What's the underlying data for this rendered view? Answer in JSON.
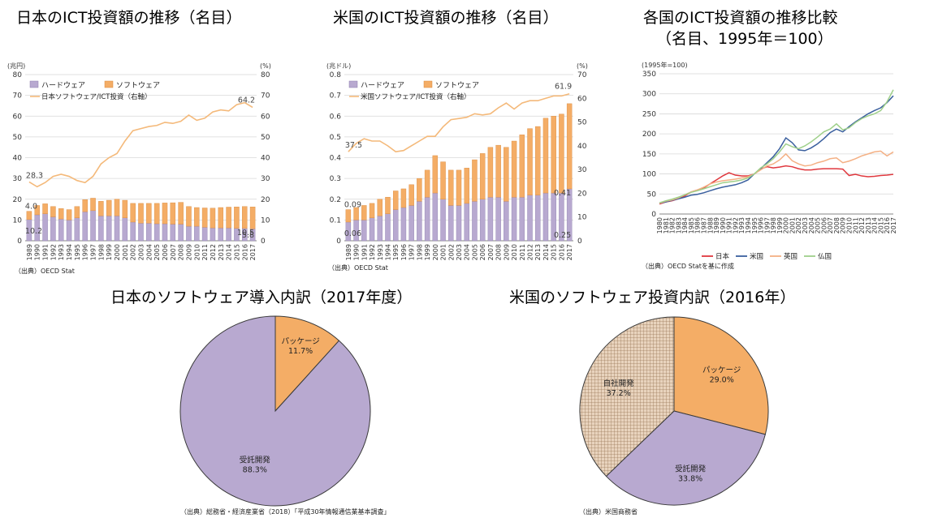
{
  "titles": {
    "c1": "日本のICT投資額の推移（名目）",
    "c2": "米国のICT投資額の推移（名目）",
    "c3a": "各国のICT投資額の推移比較",
    "c3b": "（名目、1995年＝100）",
    "p1": "日本のソフトウェア導入内訳（2017年度）",
    "p2": "米国のソフトウェア投資内訳（2016年）"
  },
  "sources": {
    "c1": "（出典）OECD Stat",
    "c2": "（出典）OECD Stat",
    "c3": "（出典）OECD Statを基に作成",
    "p1": "（出典）総務省・経済産業省（2018）「平成30年情報通信業基本調査」",
    "p2": "（出典）米国商務省"
  },
  "colors": {
    "hardware": "#b8a9d0",
    "software": "#f4ad66",
    "share_line": "#f4b97a",
    "japan": "#e0383e",
    "us": "#3a5f9e",
    "uk": "#f4b084",
    "france": "#9fd08a"
  },
  "chart_data": [
    {
      "type": "bar",
      "subtype": "stacked-bar-with-line",
      "left_unit": "(兆円)",
      "right_unit": "(%)",
      "categories": [
        "1989",
        "1990",
        "1991",
        "1992",
        "1993",
        "1994",
        "1995",
        "1996",
        "1997",
        "1998",
        "1999",
        "2000",
        "2001",
        "2002",
        "2003",
        "2004",
        "2005",
        "2006",
        "2007",
        "2008",
        "2009",
        "2010",
        "2011",
        "2012",
        "2013",
        "2014",
        "2015",
        "2016",
        "2017"
      ],
      "series": [
        {
          "name": "ハードウェア",
          "values": [
            10.2,
            12.5,
            13.0,
            11.5,
            10.5,
            10.0,
            11.0,
            14.0,
            14.5,
            12.0,
            12.0,
            12.0,
            11.0,
            9.0,
            8.5,
            8.5,
            8.2,
            8.2,
            8.0,
            8.0,
            7.0,
            7.0,
            6.5,
            6.2,
            6.2,
            6.2,
            6.0,
            6.0,
            5.8
          ]
        },
        {
          "name": "ソフトウェア",
          "values": [
            4.0,
            4.5,
            4.8,
            5.0,
            5.0,
            5.0,
            5.5,
            5.8,
            6.0,
            7.0,
            7.5,
            8.0,
            8.5,
            9.0,
            9.5,
            9.5,
            9.8,
            10.0,
            10.3,
            10.5,
            9.5,
            9.0,
            9.3,
            9.5,
            9.8,
            10.0,
            10.3,
            10.5,
            10.5
          ]
        },
        {
          "name": "日本ソフトウェア/ICT投資（右軸）",
          "axis": "right",
          "values": [
            28.3,
            26,
            28,
            31,
            32,
            31,
            29,
            28,
            31,
            37,
            40,
            42,
            48,
            53,
            54,
            55,
            55.5,
            57,
            56.5,
            57.5,
            60.5,
            58,
            59,
            62,
            63,
            62.5,
            65.5,
            66.5,
            64.2
          ]
        }
      ],
      "data_labels": [
        "10.2",
        "4.0",
        "28.3",
        "64.2",
        "10.5",
        "5.8"
      ],
      "yticks_left": [
        "0",
        "10",
        "20",
        "30",
        "40",
        "50",
        "60",
        "70",
        "80"
      ],
      "yticks_right": [
        "0",
        "10",
        "20",
        "30",
        "40",
        "50",
        "60",
        "70",
        "80"
      ],
      "ylim": [
        0,
        80
      ],
      "ylim_right": [
        0,
        80
      ],
      "grid": true,
      "legend_position": "top-left"
    },
    {
      "type": "bar",
      "subtype": "stacked-bar-with-line",
      "left_unit": "(兆ドル)",
      "right_unit": "(%)",
      "categories": [
        "1989",
        "1990",
        "1991",
        "1992",
        "1993",
        "1994",
        "1995",
        "1996",
        "1997",
        "1998",
        "1999",
        "2000",
        "2001",
        "2002",
        "2003",
        "2004",
        "2005",
        "2006",
        "2007",
        "2008",
        "2009",
        "2010",
        "2011",
        "2012",
        "2013",
        "2014",
        "2015",
        "2016",
        "2017"
      ],
      "series": [
        {
          "name": "ハードウェア",
          "values": [
            0.09,
            0.1,
            0.1,
            0.11,
            0.12,
            0.13,
            0.15,
            0.16,
            0.17,
            0.19,
            0.21,
            0.23,
            0.2,
            0.17,
            0.17,
            0.18,
            0.19,
            0.2,
            0.21,
            0.21,
            0.19,
            0.21,
            0.21,
            0.22,
            0.22,
            0.23,
            0.23,
            0.23,
            0.25
          ]
        },
        {
          "name": "ソフトウェア",
          "values": [
            0.06,
            0.06,
            0.07,
            0.07,
            0.08,
            0.08,
            0.09,
            0.09,
            0.1,
            0.11,
            0.13,
            0.18,
            0.18,
            0.17,
            0.17,
            0.17,
            0.2,
            0.22,
            0.24,
            0.25,
            0.26,
            0.27,
            0.3,
            0.32,
            0.33,
            0.36,
            0.37,
            0.38,
            0.41
          ]
        },
        {
          "name": "米国ソフトウェア/ICT投資（右軸）",
          "axis": "right",
          "values": [
            37.5,
            41,
            43,
            42,
            42,
            40,
            37.5,
            38,
            40,
            42,
            44,
            44,
            48,
            51,
            51.5,
            52,
            53.5,
            53,
            53.5,
            56,
            58,
            55.5,
            58,
            59,
            59,
            60,
            61,
            61,
            61.9
          ]
        }
      ],
      "data_labels": [
        "0.06",
        "0.09",
        "37.5",
        "61.9",
        "0.41",
        "0.25"
      ],
      "yticks_left": [
        "0",
        "0.1",
        "0.2",
        "0.3",
        "0.4",
        "0.5",
        "0.6",
        "0.7",
        "0.8"
      ],
      "yticks_right": [
        "0",
        "10",
        "20",
        "30",
        "40",
        "50",
        "60",
        "70"
      ],
      "ylim": [
        0,
        0.8
      ],
      "ylim_right": [
        0,
        70
      ],
      "grid": true,
      "legend_position": "top-left"
    },
    {
      "type": "line",
      "unit_label": "(1995年=100)",
      "categories": [
        "1980",
        "1981",
        "1982",
        "1983",
        "1984",
        "1985",
        "1986",
        "1987",
        "1988",
        "1989",
        "1990",
        "1991",
        "1992",
        "1993",
        "1994",
        "1995",
        "1996",
        "1997",
        "1998",
        "1999",
        "2000",
        "2001",
        "2002",
        "2003",
        "2004",
        "2005",
        "2006",
        "2007",
        "2008",
        "2009",
        "2010",
        "2011",
        "2012",
        "2013",
        "2014",
        "2015",
        "2016",
        "2017"
      ],
      "series": [
        {
          "name": "日本",
          "values": [
            25,
            30,
            33,
            38,
            45,
            55,
            60,
            65,
            75,
            85,
            95,
            103,
            97,
            95,
            95,
            100,
            112,
            118,
            115,
            117,
            120,
            118,
            113,
            110,
            110,
            112,
            113,
            113,
            113,
            112,
            96,
            99,
            95,
            93,
            94,
            96,
            97,
            99
          ]
        },
        {
          "name": "米国",
          "values": [
            27,
            30,
            34,
            38,
            42,
            47,
            49,
            53,
            58,
            63,
            67,
            70,
            73,
            78,
            85,
            100,
            113,
            128,
            143,
            163,
            190,
            178,
            160,
            158,
            165,
            175,
            188,
            203,
            212,
            205,
            218,
            230,
            240,
            250,
            258,
            265,
            278,
            295
          ]
        },
        {
          "name": "英国",
          "values": [
            27,
            32,
            35,
            40,
            48,
            55,
            60,
            67,
            75,
            80,
            83,
            85,
            87,
            90,
            93,
            100,
            110,
            120,
            125,
            135,
            150,
            133,
            125,
            120,
            122,
            128,
            132,
            138,
            140,
            128,
            132,
            138,
            145,
            150,
            155,
            157,
            145,
            155
          ]
        },
        {
          "name": "仏国",
          "values": [
            28,
            33,
            37,
            42,
            48,
            54,
            58,
            63,
            68,
            73,
            78,
            80,
            82,
            85,
            90,
            100,
            115,
            125,
            138,
            155,
            175,
            168,
            163,
            170,
            180,
            192,
            205,
            212,
            225,
            210,
            215,
            228,
            238,
            245,
            250,
            258,
            280,
            310
          ]
        }
      ],
      "yticks": [
        "0",
        "50",
        "100",
        "150",
        "200",
        "250",
        "300",
        "350"
      ],
      "ylim": [
        0,
        350
      ],
      "grid": true,
      "legend_position": "bottom"
    },
    {
      "type": "pie",
      "slices": [
        {
          "label": "パッケージ",
          "value": 11.7,
          "text": "11.7%"
        },
        {
          "label": "受託開発",
          "value": 88.3,
          "text": "88.3%"
        }
      ]
    },
    {
      "type": "pie",
      "slices": [
        {
          "label": "パッケージ",
          "value": 29.0,
          "text": "29.0%"
        },
        {
          "label": "受託開発",
          "value": 33.8,
          "text": "33.8%"
        },
        {
          "label": "自社開発",
          "value": 37.2,
          "text": "37.2%"
        }
      ]
    }
  ]
}
